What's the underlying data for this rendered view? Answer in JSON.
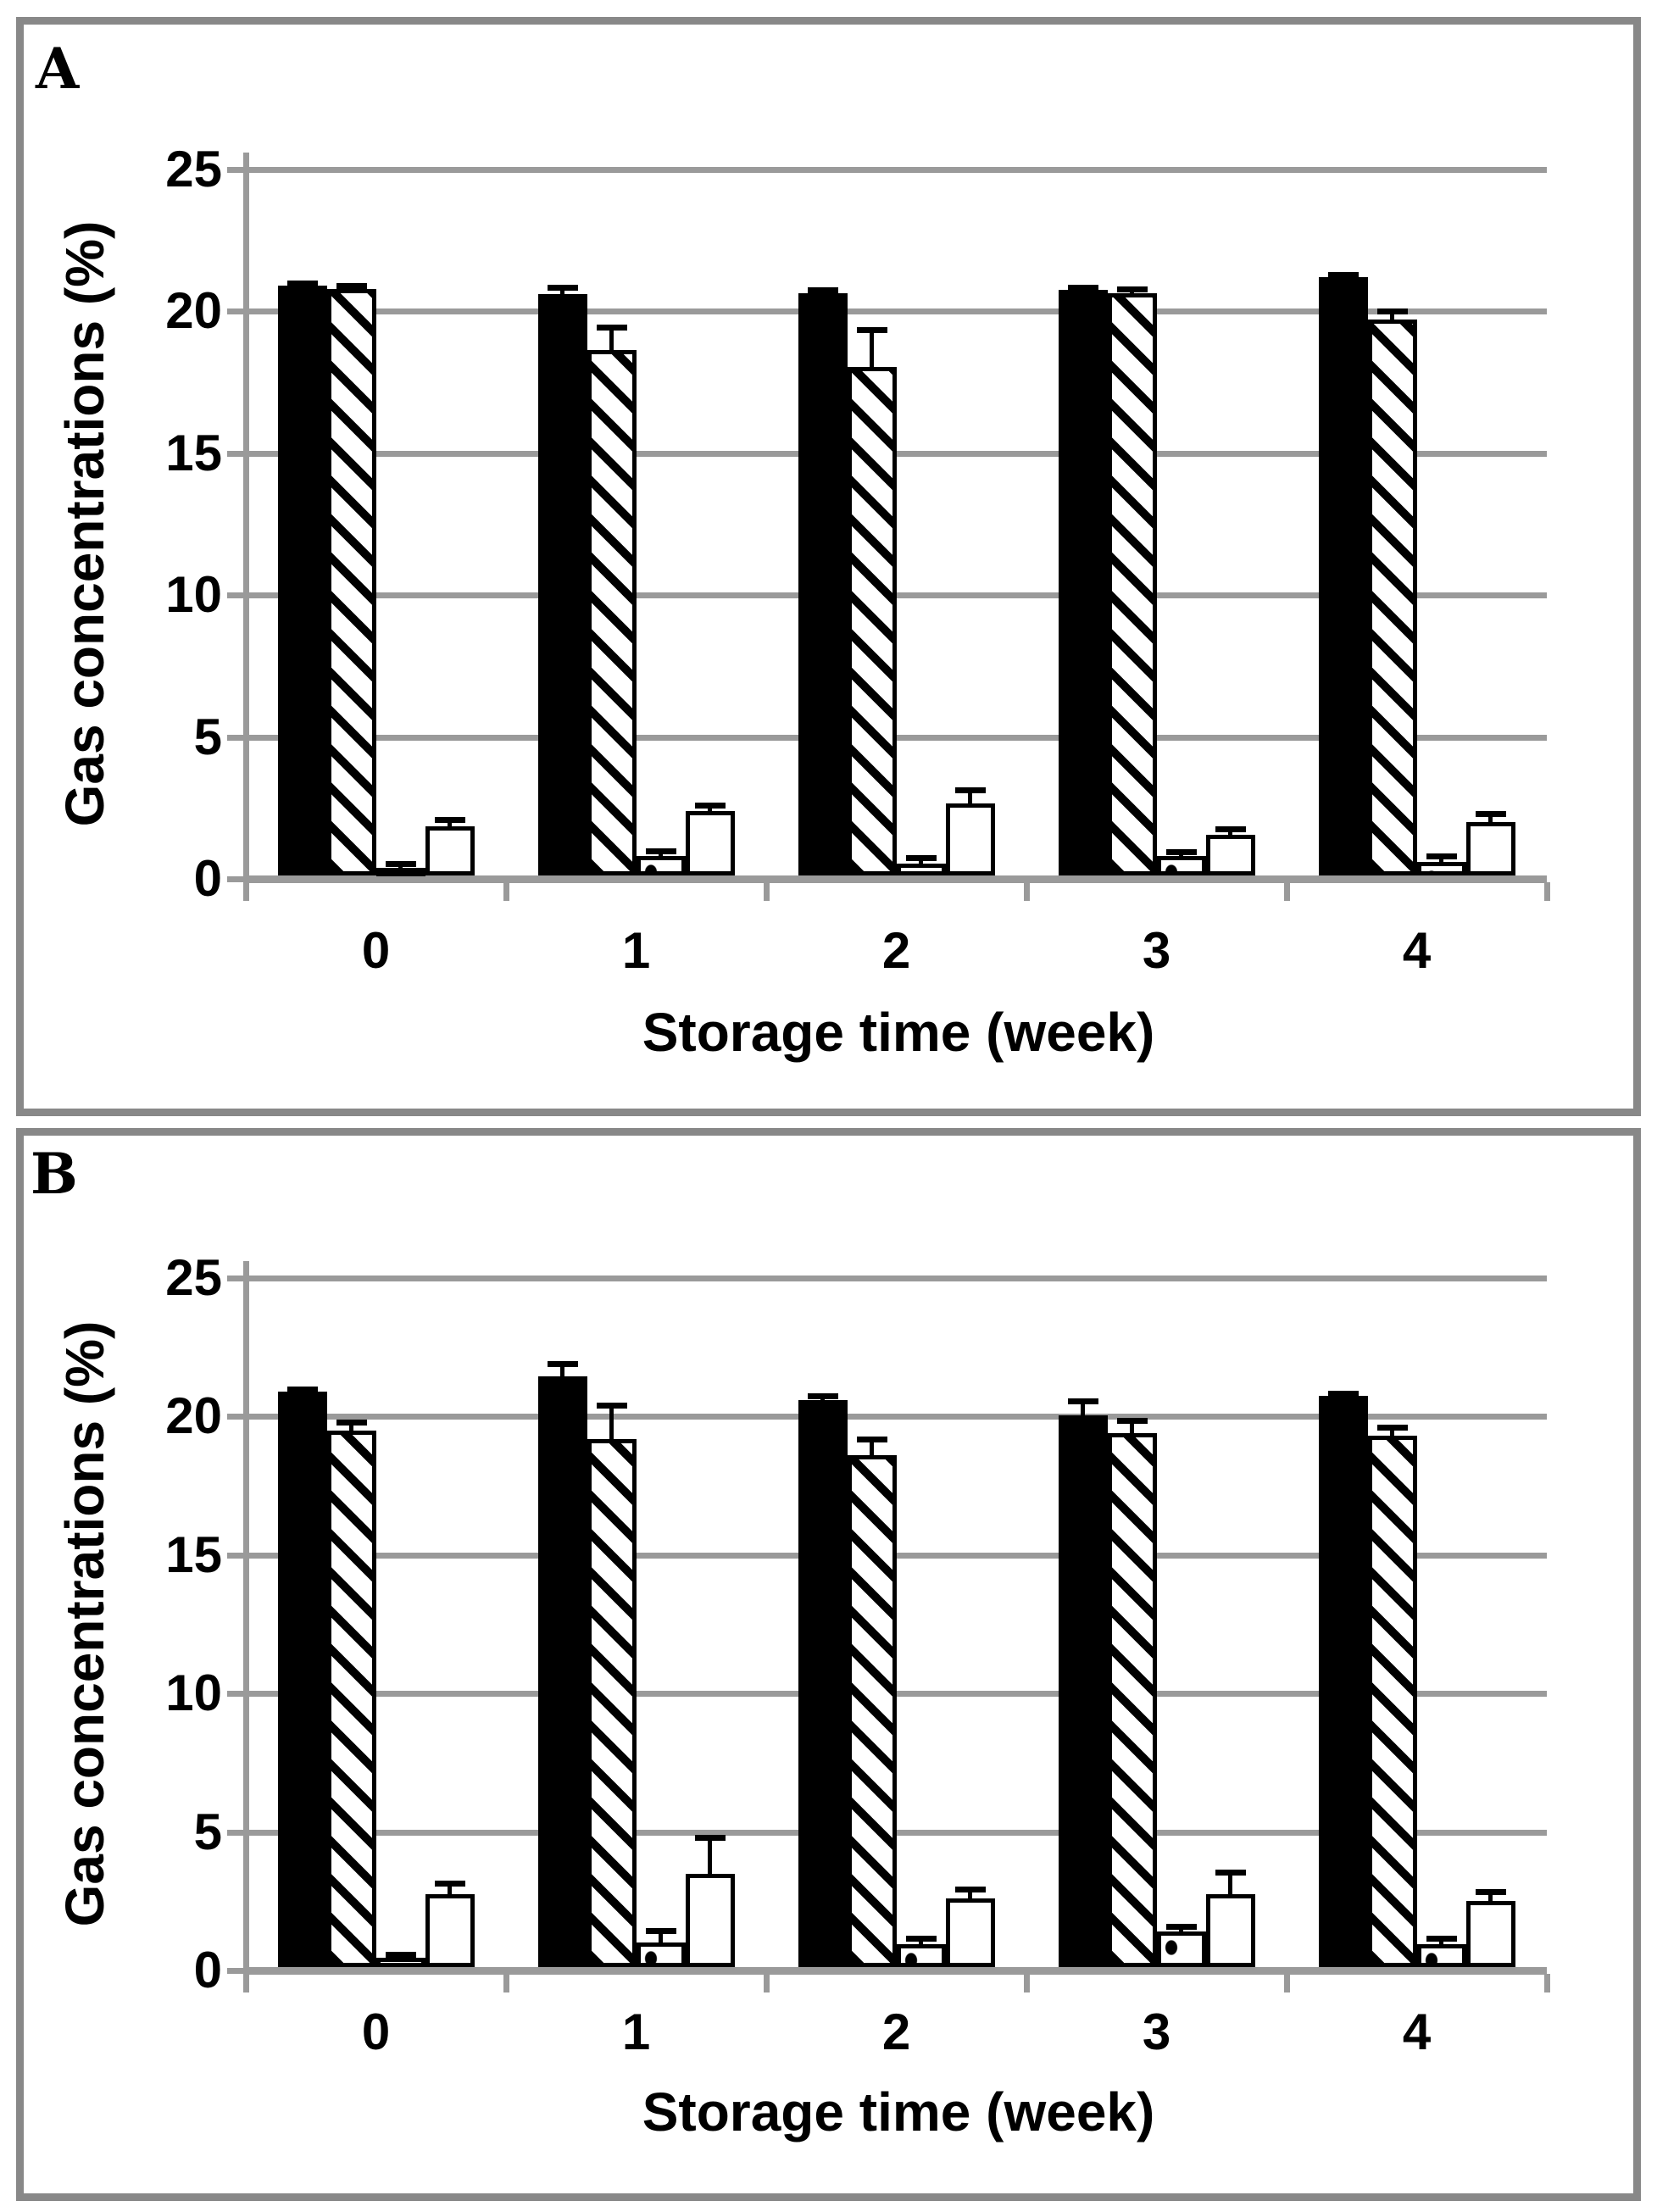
{
  "figure": {
    "description": "Two stacked framed panels, grouped bar charts with upward error bars, no legend",
    "colors": {
      "bar_black": "#000000",
      "grid_line": "#9a9a9a",
      "panel_border": "#888888",
      "background": "#ffffff",
      "text": "#000000"
    }
  },
  "chart_data": [
    {
      "type": "bar",
      "panel_label": "A",
      "xlabel": "Storage time (week)",
      "ylabel": "Gas concentrations (%)",
      "categories": [
        "0",
        "1",
        "2",
        "3",
        "4"
      ],
      "ylim": [
        0,
        25
      ],
      "yticks": [
        "0",
        "5",
        "10",
        "15",
        "20",
        "25"
      ],
      "grid": true,
      "legend_position": "none",
      "error_bars": "plus-direction-with-caps",
      "series": [
        {
          "name": "solid-black-bar",
          "pattern": "solid",
          "values": [
            20.9,
            20.6,
            20.65,
            20.75,
            21.2
          ],
          "errors_plus": [
            0.1,
            0.25,
            0.1,
            0.1,
            0.1
          ]
        },
        {
          "name": "diagonal-hatched-bar",
          "pattern": "hatch",
          "values": [
            20.8,
            18.65,
            18.05,
            20.65,
            19.7
          ],
          "errors_plus": [
            0.1,
            0.8,
            1.3,
            0.15,
            0.3
          ]
        },
        {
          "name": "dotted-bar",
          "pattern": "dots",
          "values": [
            0.4,
            0.8,
            0.55,
            0.8,
            0.6
          ],
          "errors_plus": [
            0.15,
            0.2,
            0.2,
            0.15,
            0.2
          ]
        },
        {
          "name": "open-white-bar",
          "pattern": "open",
          "values": [
            1.85,
            2.4,
            2.65,
            1.55,
            2.0
          ],
          "errors_plus": [
            0.25,
            0.2,
            0.5,
            0.2,
            0.3
          ]
        }
      ]
    },
    {
      "type": "bar",
      "panel_label": "B",
      "xlabel": "Storage time (week)",
      "ylabel": "Gas concentrations (%)",
      "categories": [
        "0",
        "1",
        "2",
        "3",
        "4"
      ],
      "ylim": [
        0,
        25
      ],
      "yticks": [
        "0",
        "5",
        "10",
        "15",
        "20",
        "25"
      ],
      "grid": true,
      "legend_position": "none",
      "error_bars": "plus-direction-with-caps",
      "series": [
        {
          "name": "solid-black-bar",
          "pattern": "solid",
          "values": [
            20.9,
            21.45,
            20.6,
            20.05,
            20.75
          ],
          "errors_plus": [
            0.1,
            0.45,
            0.15,
            0.5,
            0.1
          ]
        },
        {
          "name": "diagonal-hatched-bar",
          "pattern": "hatch",
          "values": [
            19.5,
            19.2,
            18.6,
            19.4,
            19.3
          ],
          "errors_plus": [
            0.3,
            1.2,
            0.6,
            0.45,
            0.3
          ]
        },
        {
          "name": "dotted-bar",
          "pattern": "dots",
          "values": [
            0.45,
            1.0,
            0.95,
            1.4,
            0.95
          ],
          "errors_plus": [
            0.12,
            0.45,
            0.2,
            0.2,
            0.2
          ]
        },
        {
          "name": "open-white-bar",
          "pattern": "open",
          "values": [
            2.75,
            3.5,
            2.6,
            2.75,
            2.5
          ],
          "errors_plus": [
            0.4,
            1.3,
            0.35,
            0.8,
            0.35
          ]
        }
      ]
    }
  ]
}
